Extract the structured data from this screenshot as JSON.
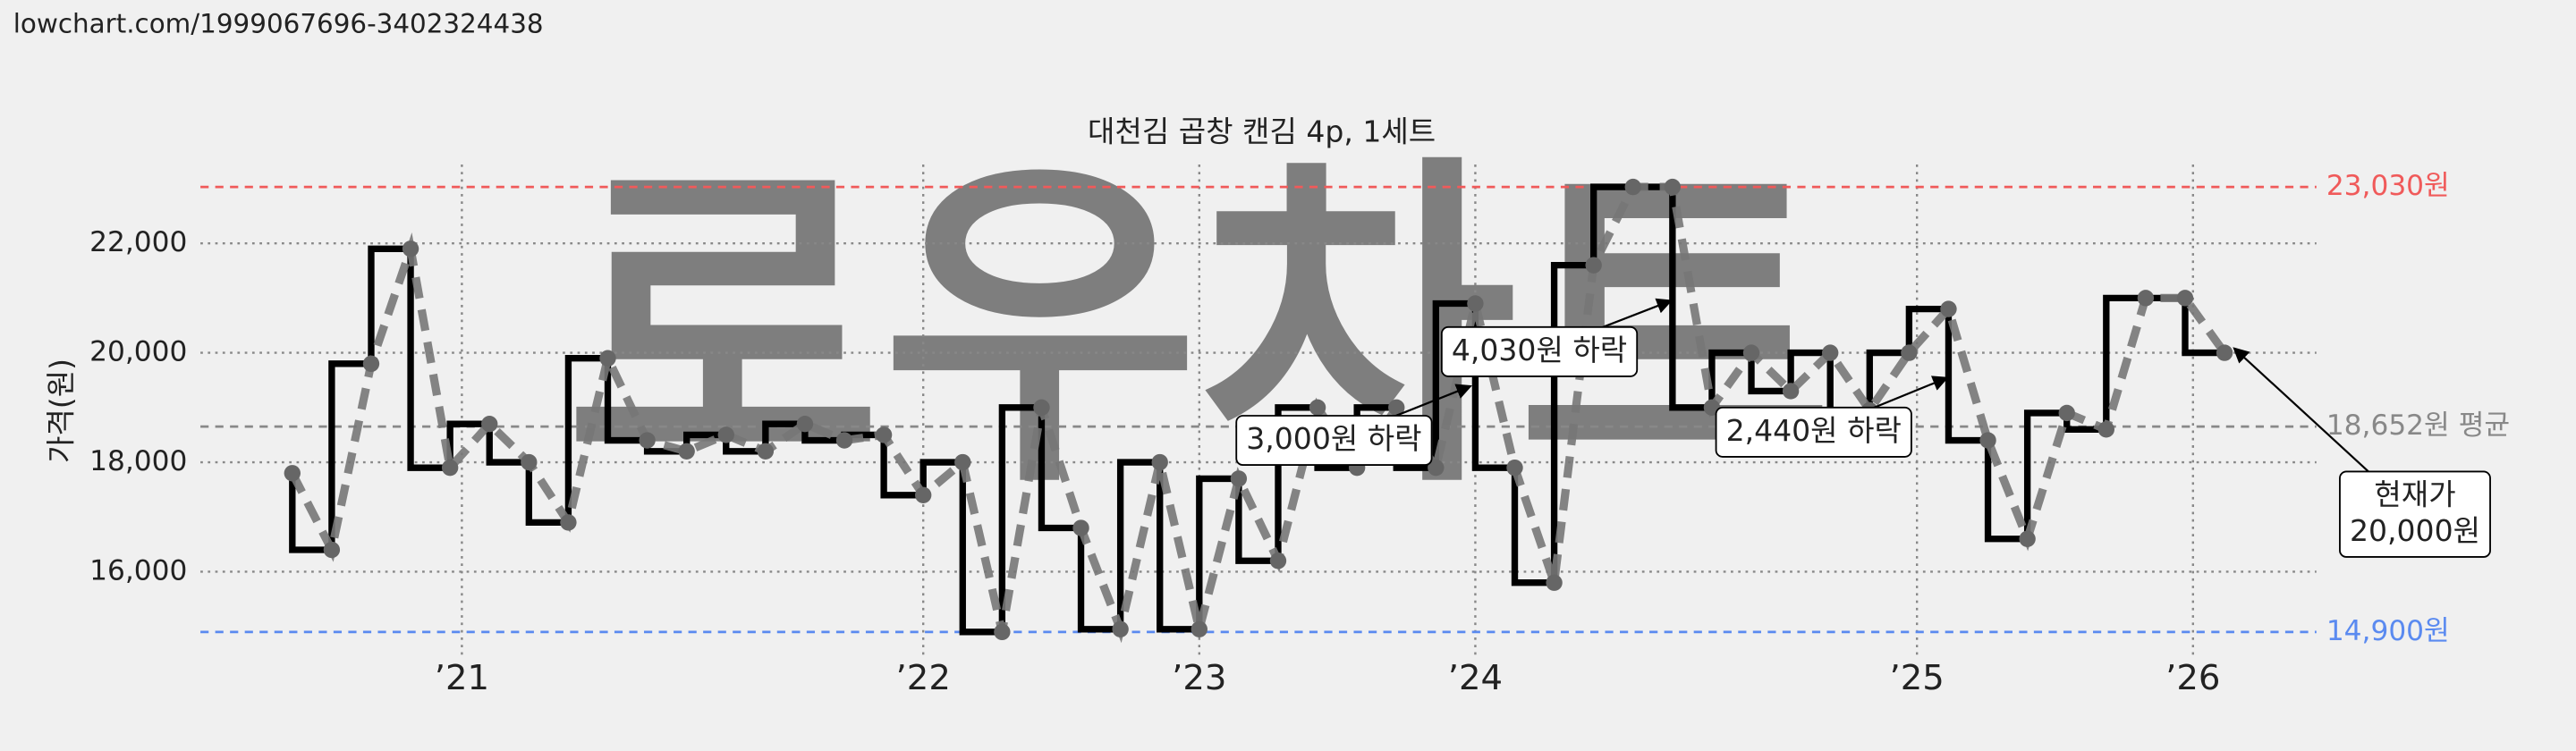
{
  "source": "lowchart.com/1999067696-3402324438",
  "chart_data": {
    "type": "line",
    "title": "대천김 곱창 캔김 4p, 1세트",
    "y_label": "가격(원)",
    "watermark": "로우차트",
    "x": [
      0,
      1,
      2,
      3,
      4,
      5,
      6,
      7,
      8,
      9,
      10,
      11,
      12,
      13,
      14,
      15,
      16,
      17,
      18,
      19,
      20,
      21,
      22,
      23,
      24,
      25,
      26,
      27,
      28,
      29,
      30,
      31,
      32,
      33,
      34,
      35,
      36,
      37,
      38,
      39,
      40,
      41,
      42,
      43,
      44,
      45,
      46,
      47,
      48,
      49
    ],
    "series": [
      {
        "step": true,
        "markers": true,
        "color": "#000000",
        "trend_color": "#777777",
        "values": [
          17800,
          16400,
          19800,
          21900,
          17900,
          18700,
          18000,
          16900,
          19900,
          18400,
          18200,
          18500,
          18200,
          18700,
          18400,
          18500,
          17400,
          18000,
          14900,
          19000,
          16800,
          14950,
          18000,
          14950,
          17700,
          16200,
          19000,
          17900,
          19000,
          17900,
          20900,
          17900,
          15800,
          21600,
          23030,
          23030,
          19000,
          20000,
          19300,
          20000,
          18950,
          20000,
          20800,
          18400,
          16600,
          18900,
          18600,
          21000,
          21000,
          20000
        ]
      }
    ],
    "xlim": [
      -2.33,
      51.33
    ],
    "xticks": [
      {
        "value": 4.3,
        "label": "’21"
      },
      {
        "value": 16,
        "label": "’22"
      },
      {
        "value": 23,
        "label": "’23"
      },
      {
        "value": 30,
        "label": "’24"
      },
      {
        "value": 41.2,
        "label": "’25"
      },
      {
        "value": 48.2,
        "label": "’26"
      }
    ],
    "ylim": [
      14440,
      23440
    ],
    "yticks": [
      {
        "value": 16000,
        "label": "16,000"
      },
      {
        "value": 18000,
        "label": "18,000"
      },
      {
        "value": 20000,
        "label": "20,000"
      },
      {
        "value": 22000,
        "label": "22,000"
      }
    ],
    "grid": true,
    "hlines": [
      {
        "value": 23030,
        "label": "23,030원",
        "color": "#f05a5a"
      },
      {
        "value": 18652,
        "label": "18,652원 평균",
        "color": "#888888"
      },
      {
        "value": 14900,
        "label": "14,900원",
        "color": "#5a8af0"
      }
    ],
    "annotations": [
      {
        "lines": [
          "3,000원 하락"
        ]
      },
      {
        "lines": [
          "4,030원 하락"
        ]
      },
      {
        "lines": [
          "2,440원 하락"
        ]
      },
      {
        "lines": [
          "현재가",
          "20,000원"
        ]
      }
    ]
  }
}
